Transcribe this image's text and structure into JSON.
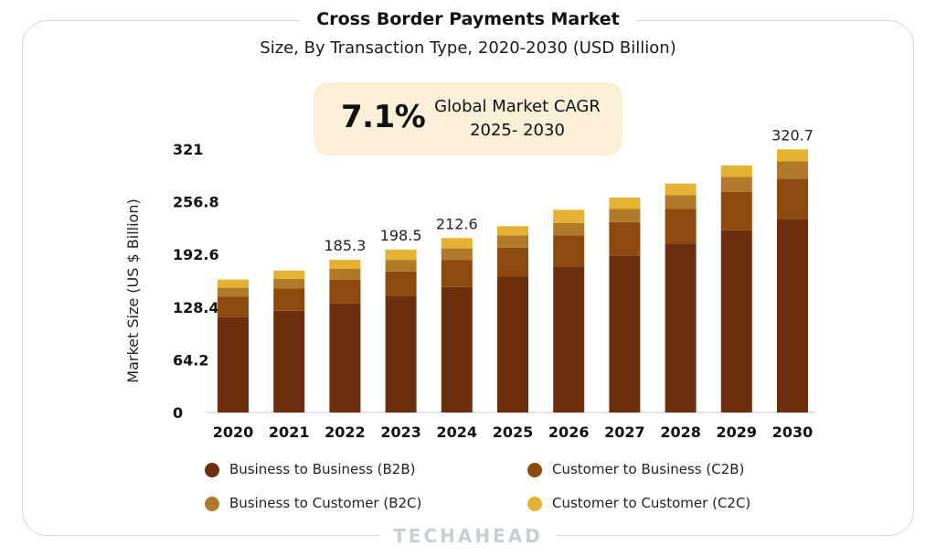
{
  "header": {
    "title": "Cross Border Payments Market",
    "subtitle": "Size, By Transaction Type, 2020-2030 (USD Billion)"
  },
  "cagr": {
    "value": "7.1%",
    "label_line1": "Global Market CAGR",
    "label_line2": "2025- 2030"
  },
  "watermark": "TECHAHEAD",
  "chart_data": {
    "type": "bar",
    "stacked": true,
    "title": "Cross Border Payments Market",
    "subtitle": "Size, By Transaction Type, 2020-2030 (USD Billion)",
    "ylabel": "Market Size (US $ Billion)",
    "xlabel": "",
    "ylim": [
      0,
      321
    ],
    "yticks": [
      "0",
      "64.2",
      "128.4",
      "192.6",
      "256.8",
      "321"
    ],
    "categories": [
      "2020",
      "2021",
      "2022",
      "2023",
      "2024",
      "2025",
      "2026",
      "2027",
      "2028",
      "2029",
      "2030"
    ],
    "series": [
      {
        "name": "Business to Business (B2B)",
        "color": "#6b2f0f",
        "values": [
          116,
          124,
          133,
          142,
          153,
          166,
          178,
          191,
          206,
          222,
          236
        ]
      },
      {
        "name": "Customer to Business (C2B)",
        "color": "#8e4a0e",
        "values": [
          25,
          27,
          29,
          30,
          33,
          35,
          38,
          41,
          42,
          47,
          49
        ]
      },
      {
        "name": "Business to Customer (B2C)",
        "color": "#b07a2a",
        "values": [
          11,
          12,
          13,
          14,
          14,
          15,
          15,
          16,
          17,
          18,
          21
        ]
      },
      {
        "name": "Customer to Customer (C2C)",
        "color": "#e5b233",
        "values": [
          10,
          10,
          11,
          12.5,
          12.6,
          11,
          16,
          14,
          14,
          14,
          14.7
        ]
      }
    ],
    "data_labels": [
      {
        "category": "2022",
        "text": "185.3"
      },
      {
        "category": "2023",
        "text": "198.5"
      },
      {
        "category": "2024",
        "text": "212.6"
      },
      {
        "category": "2030",
        "text": "320.7"
      }
    ],
    "grid": false,
    "legend_position": "bottom"
  }
}
